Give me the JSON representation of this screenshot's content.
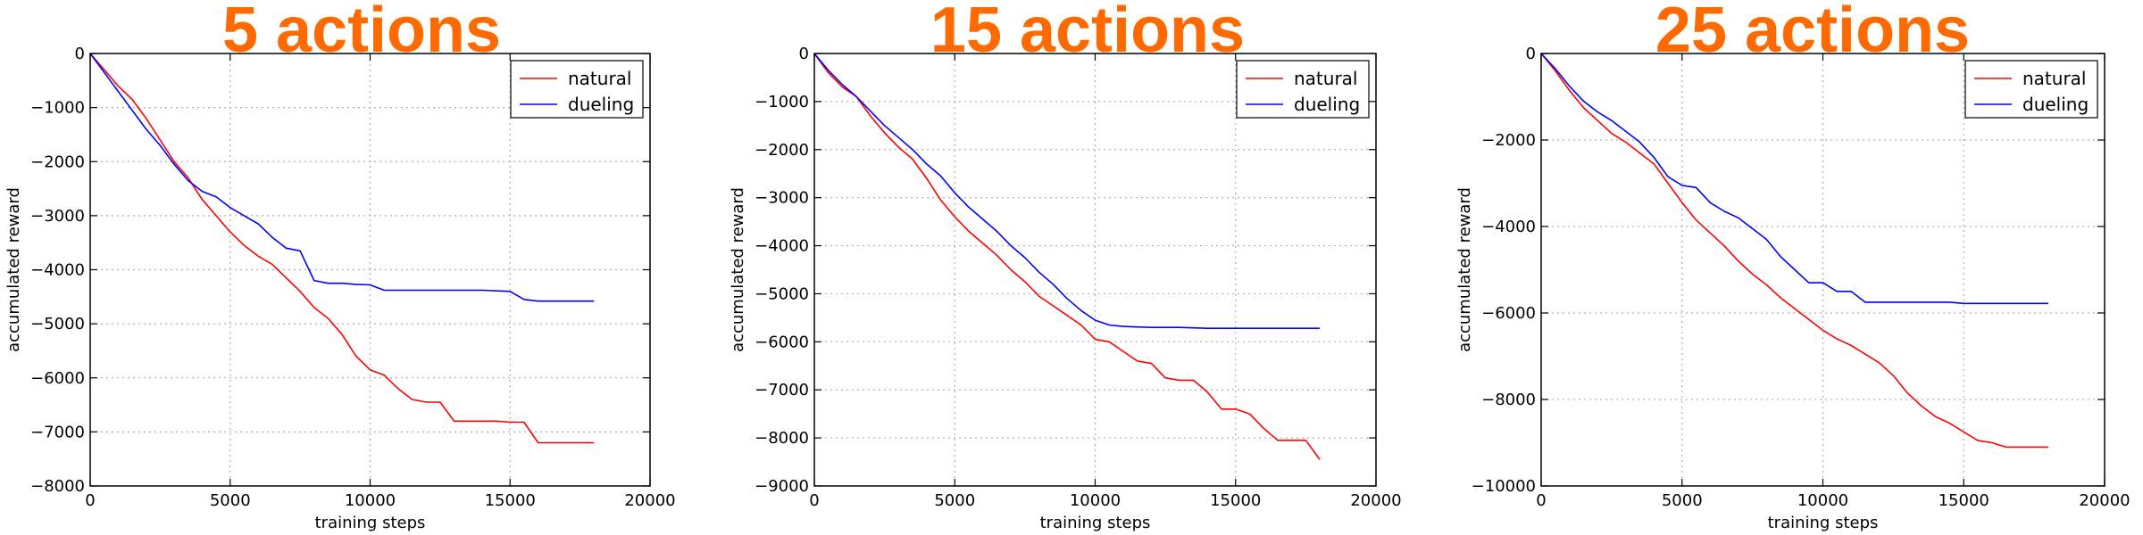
{
  "chart_data": [
    {
      "type": "line",
      "title": "5 actions",
      "xlabel": "training steps",
      "ylabel": "accumulated reward",
      "xlim": [
        0,
        20000
      ],
      "ylim": [
        -8000,
        0
      ],
      "xticks": [
        0,
        5000,
        10000,
        15000,
        20000
      ],
      "yticks": [
        0,
        -1000,
        -2000,
        -3000,
        -4000,
        -5000,
        -6000,
        -7000,
        -8000
      ],
      "grid": true,
      "legend": "top-right",
      "series": [
        {
          "name": "natural",
          "color": "#ff0000",
          "x": [
            0,
            500,
            1000,
            1500,
            2000,
            2500,
            3000,
            3500,
            4000,
            4500,
            5000,
            5500,
            6000,
            6500,
            7000,
            7500,
            8000,
            8500,
            9000,
            9500,
            10000,
            10500,
            11000,
            11500,
            12000,
            12500,
            13000,
            13500,
            14000,
            14500,
            15000,
            15500,
            16000,
            17000,
            18000
          ],
          "values": [
            0,
            -300,
            -600,
            -850,
            -1200,
            -1600,
            -2000,
            -2300,
            -2700,
            -3000,
            -3300,
            -3550,
            -3750,
            -3900,
            -4150,
            -4400,
            -4700,
            -4900,
            -5200,
            -5600,
            -5850,
            -5950,
            -6200,
            -6400,
            -6450,
            -6450,
            -6800,
            -6800,
            -6800,
            -6800,
            -6820,
            -6820,
            -7200,
            -7200,
            -7200
          ]
        },
        {
          "name": "dueling",
          "color": "#0000ff",
          "x": [
            0,
            500,
            1000,
            1500,
            2000,
            2500,
            3000,
            3500,
            4000,
            4500,
            5000,
            5500,
            6000,
            6500,
            7000,
            7500,
            8000,
            8500,
            9000,
            9500,
            10000,
            10500,
            11000,
            12000,
            13000,
            14000,
            15000,
            15500,
            16000,
            17000,
            18000
          ],
          "values": [
            0,
            -350,
            -700,
            -1050,
            -1400,
            -1700,
            -2050,
            -2350,
            -2550,
            -2650,
            -2850,
            -3000,
            -3150,
            -3400,
            -3600,
            -3650,
            -4200,
            -4250,
            -4250,
            -4270,
            -4280,
            -4380,
            -4380,
            -4380,
            -4380,
            -4380,
            -4400,
            -4550,
            -4580,
            -4580,
            -4580
          ]
        }
      ]
    },
    {
      "type": "line",
      "title": "15 actions",
      "xlabel": "training steps",
      "ylabel": "accumulated reward",
      "xlim": [
        0,
        20000
      ],
      "ylim": [
        -9000,
        0
      ],
      "xticks": [
        0,
        5000,
        10000,
        15000,
        20000
      ],
      "yticks": [
        0,
        -1000,
        -2000,
        -3000,
        -4000,
        -5000,
        -6000,
        -7000,
        -8000,
        -9000
      ],
      "grid": true,
      "legend": "top-right",
      "series": [
        {
          "name": "natural",
          "color": "#ff0000",
          "x": [
            0,
            500,
            1000,
            1500,
            2000,
            2500,
            3000,
            3500,
            4000,
            4500,
            5000,
            5500,
            6000,
            6500,
            7000,
            7500,
            8000,
            8500,
            9000,
            9500,
            10000,
            10500,
            11000,
            11500,
            12000,
            12500,
            13000,
            13500,
            14000,
            14500,
            15000,
            15500,
            16000,
            16500,
            17000,
            17500,
            18000
          ],
          "values": [
            0,
            -400,
            -700,
            -900,
            -1300,
            -1650,
            -1950,
            -2200,
            -2600,
            -3050,
            -3400,
            -3700,
            -3950,
            -4200,
            -4500,
            -4750,
            -5050,
            -5250,
            -5450,
            -5650,
            -5950,
            -6000,
            -6200,
            -6400,
            -6450,
            -6750,
            -6800,
            -6800,
            -7050,
            -7400,
            -7400,
            -7500,
            -7800,
            -8050,
            -8050,
            -8050,
            -8450
          ]
        },
        {
          "name": "dueling",
          "color": "#0000ff",
          "x": [
            0,
            500,
            1000,
            1500,
            2000,
            2500,
            3000,
            3500,
            4000,
            4500,
            5000,
            5500,
            6000,
            6500,
            7000,
            7500,
            8000,
            8500,
            9000,
            9500,
            10000,
            10500,
            11000,
            12000,
            13000,
            14000,
            15000,
            16000,
            17000,
            18000
          ],
          "values": [
            0,
            -350,
            -650,
            -900,
            -1200,
            -1500,
            -1750,
            -2000,
            -2300,
            -2550,
            -2900,
            -3200,
            -3450,
            -3700,
            -4000,
            -4250,
            -4550,
            -4800,
            -5100,
            -5350,
            -5550,
            -5650,
            -5680,
            -5700,
            -5700,
            -5720,
            -5720,
            -5720,
            -5720,
            -5720
          ]
        }
      ]
    },
    {
      "type": "line",
      "title": "25 actions",
      "xlabel": "training steps",
      "ylabel": "accumulated reward",
      "xlim": [
        0,
        20000
      ],
      "ylim": [
        -10000,
        0
      ],
      "xticks": [
        0,
        5000,
        10000,
        15000,
        20000
      ],
      "yticks": [
        0,
        -2000,
        -4000,
        -6000,
        -8000,
        -10000
      ],
      "grid": true,
      "legend": "top-right",
      "series": [
        {
          "name": "natural",
          "color": "#ff0000",
          "x": [
            0,
            500,
            1000,
            1500,
            2000,
            2500,
            3000,
            3500,
            4000,
            4500,
            5000,
            5500,
            6000,
            6500,
            7000,
            7500,
            8000,
            8500,
            9000,
            9500,
            10000,
            10500,
            11000,
            11500,
            12000,
            12500,
            13000,
            13500,
            14000,
            14500,
            15000,
            15500,
            16000,
            16500,
            17000,
            18000
          ],
          "values": [
            0,
            -400,
            -850,
            -1250,
            -1550,
            -1850,
            -2050,
            -2300,
            -2550,
            -3000,
            -3450,
            -3850,
            -4150,
            -4450,
            -4800,
            -5100,
            -5350,
            -5650,
            -5900,
            -6150,
            -6400,
            -6600,
            -6750,
            -6950,
            -7150,
            -7450,
            -7850,
            -8150,
            -8400,
            -8550,
            -8750,
            -8950,
            -9000,
            -9100,
            -9100,
            -9100
          ]
        },
        {
          "name": "dueling",
          "color": "#0000ff",
          "x": [
            0,
            500,
            1000,
            1500,
            2000,
            2500,
            3000,
            3500,
            4000,
            4500,
            5000,
            5500,
            6000,
            6500,
            7000,
            7500,
            8000,
            8500,
            9000,
            9500,
            10000,
            10500,
            11000,
            11500,
            12000,
            13000,
            14000,
            14500,
            15000,
            16000,
            17000,
            18000
          ],
          "values": [
            0,
            -350,
            -750,
            -1100,
            -1350,
            -1550,
            -1800,
            -2050,
            -2400,
            -2850,
            -3050,
            -3100,
            -3450,
            -3650,
            -3800,
            -4050,
            -4300,
            -4700,
            -5000,
            -5300,
            -5300,
            -5500,
            -5500,
            -5750,
            -5750,
            -5750,
            -5750,
            -5750,
            -5780,
            -5780,
            -5780,
            -5780
          ]
        }
      ]
    }
  ]
}
